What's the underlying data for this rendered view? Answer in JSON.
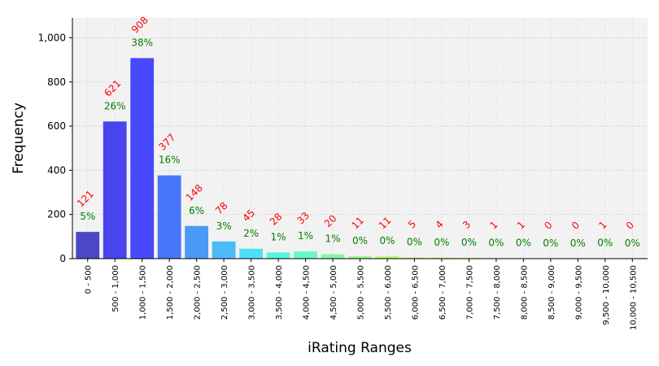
{
  "chart_data": {
    "type": "bar",
    "xlabel": "iRating Ranges",
    "ylabel": "Frequency",
    "ylim": [
      0,
      1090
    ],
    "yticks": [
      0,
      200,
      400,
      600,
      800,
      1000
    ],
    "ytick_labels": [
      "0",
      "200",
      "400",
      "600",
      "800",
      "1,000"
    ],
    "grid": true,
    "categories": [
      "0 - 500",
      "500 - 1,000",
      "1,000 - 1,500",
      "1,500 - 2,000",
      "2,000 - 2,500",
      "2,500 - 3,000",
      "3,000 - 3,500",
      "3,500 - 4,000",
      "4,000 - 4,500",
      "4,500 - 5,000",
      "5,000 - 5,500",
      "5,500 - 6,000",
      "6,000 - 6,500",
      "6,500 - 7,000",
      "7,000 - 7,500",
      "7,500 - 8,000",
      "8,000 - 8,500",
      "8,500 - 9,000",
      "9,000 - 9,500",
      "9,500 - 10,000",
      "10,000 - 10,500"
    ],
    "values": [
      121,
      621,
      908,
      377,
      148,
      78,
      45,
      28,
      33,
      20,
      11,
      11,
      5,
      4,
      3,
      1,
      1,
      0,
      0,
      1,
      0
    ],
    "value_labels": [
      "121",
      "621",
      "908",
      "377",
      "148",
      "78",
      "45",
      "28",
      "33",
      "20",
      "11",
      "11",
      "5",
      "4",
      "3",
      "1",
      "1",
      "0",
      "0",
      "1",
      "0"
    ],
    "percent_labels": [
      "5%",
      "26%",
      "38%",
      "16%",
      "6%",
      "3%",
      "2%",
      "1%",
      "1%",
      "1%",
      "0%",
      "0%",
      "0%",
      "0%",
      "0%",
      "0%",
      "0%",
      "0%",
      "0%",
      "0%",
      "0%"
    ],
    "bar_colors": [
      "#4a48c8",
      "#4844ee",
      "#4848ff",
      "#4876f8",
      "#4a9af8",
      "#4cbaf8",
      "#4ce0f8",
      "#52f8e0",
      "#6af8c4",
      "#84f8a8",
      "#a0f890",
      "#bcf878",
      "#d4f864",
      "#e8f050",
      "#f8e048",
      "#f8c040",
      "#f89a38",
      "#f87030",
      "#f84a28",
      "#e83224",
      "#c81a1a"
    ],
    "count_label_color": "#ff0000",
    "percent_label_color": "#008000",
    "plot_background": "#f2f2f2"
  }
}
